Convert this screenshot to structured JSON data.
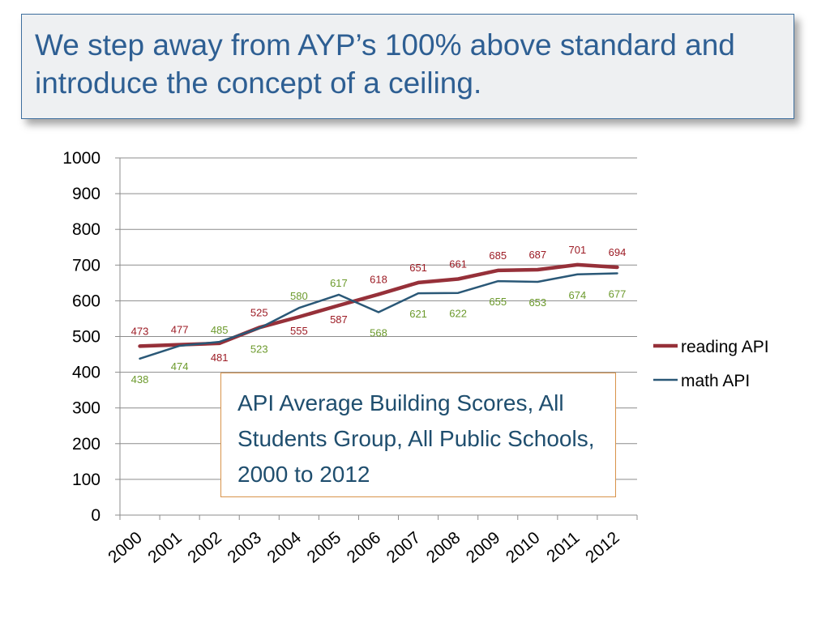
{
  "slide": {
    "title": "We step away from AYP’s 100% above standard and introduce the concept of a ceiling."
  },
  "note": {
    "text": "API Average Building Scores, All Students Group, All Public Schools, 2000 to 2012"
  },
  "colors": {
    "reading": "#963039",
    "math": "#2a5877",
    "reading_label": "#9c1b24",
    "math_label": "#6c9a2c",
    "grid": "#8c8c8c"
  },
  "chart_data": {
    "type": "line",
    "categories": [
      "2000",
      "2001",
      "2002",
      "2003",
      "2004",
      "2005",
      "2006",
      "2007",
      "2008",
      "2009",
      "2010",
      "2011",
      "2012"
    ],
    "series": [
      {
        "name": "reading API",
        "values": [
          473,
          477,
          481,
          525,
          555,
          587,
          618,
          651,
          661,
          685,
          687,
          701,
          694
        ]
      },
      {
        "name": "math API",
        "values": [
          438,
          474,
          485,
          523,
          580,
          617,
          568,
          621,
          622,
          655,
          653,
          674,
          677
        ]
      }
    ],
    "ylim": [
      0,
      1000
    ],
    "yticks": [
      0,
      100,
      200,
      300,
      400,
      500,
      600,
      700,
      800,
      900,
      1000
    ],
    "grid": true,
    "legend_position": "right",
    "data_labels": true
  }
}
